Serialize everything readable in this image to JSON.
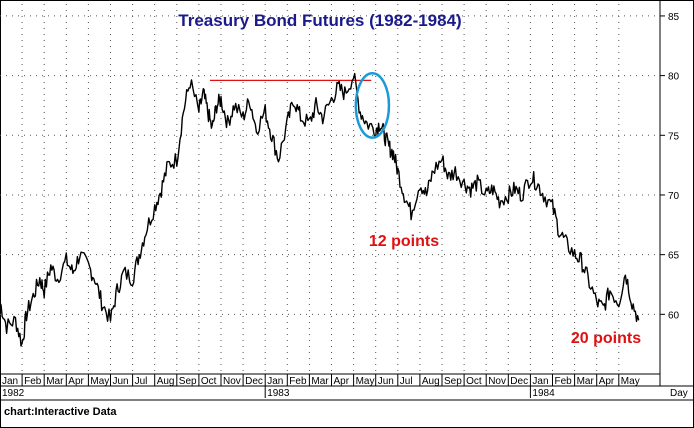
{
  "chart_data": {
    "type": "line",
    "title": "Treasury Bond Futures (1982-1984)",
    "xlabel": "Day",
    "ylabel": "",
    "ylim": [
      55,
      86
    ],
    "yticks": [
      60,
      65,
      70,
      75,
      80,
      85
    ],
    "month_labels": [
      "Jan",
      "Feb",
      "Mar",
      "Apr",
      "May",
      "Jun",
      "Jul",
      "Aug",
      "Sep",
      "Oct",
      "Nov",
      "Dec",
      "Jan",
      "Feb",
      "Mar",
      "Apr",
      "May",
      "Jun",
      "Jul",
      "Aug",
      "Sep",
      "Oct",
      "Nov",
      "Dec",
      "Jan",
      "Feb",
      "Mar",
      "Apr",
      "May"
    ],
    "year_labels": [
      {
        "label": "1982",
        "month_index": 0
      },
      {
        "label": "1983",
        "month_index": 12
      },
      {
        "label": "1984",
        "month_index": 24
      }
    ],
    "grid": true,
    "series": [
      {
        "color": "#000000",
        "x": [
          0.0,
          0.3,
          0.7,
          1.0,
          1.2,
          1.5,
          1.8,
          2.0,
          2.3,
          2.6,
          3.0,
          3.3,
          3.6,
          4.0,
          4.3,
          4.6,
          5.0,
          5.3,
          5.6,
          6.0,
          6.3,
          6.6,
          7.0,
          7.3,
          7.6,
          8.0,
          8.3,
          8.6,
          9.0,
          9.2,
          9.4,
          9.6,
          9.8,
          10.0,
          10.3,
          10.6,
          11.0,
          11.3,
          11.6,
          12.0,
          12.3,
          12.6,
          13.0,
          13.3,
          13.6,
          14.0,
          14.3,
          14.6,
          15.0,
          15.3,
          15.6,
          16.0,
          16.3,
          16.6,
          17.0,
          17.2,
          17.4,
          17.6,
          17.8,
          18.0,
          18.3,
          18.6,
          19.0,
          19.3,
          19.6,
          20.0,
          20.3,
          20.6,
          21.0,
          21.3,
          21.6,
          22.0,
          22.3,
          22.6,
          23.0,
          23.3,
          23.6,
          24.0,
          24.3,
          24.6,
          25.0,
          25.3,
          25.6,
          26.0,
          26.3,
          26.6,
          27.0,
          27.3,
          27.6,
          28.0,
          28.3,
          28.6,
          28.9
        ],
        "y": [
          61.0,
          59.0,
          59.5,
          57.5,
          60.0,
          61.5,
          63.0,
          62.0,
          64.0,
          63.0,
          64.5,
          63.5,
          65.0,
          64.0,
          63.0,
          61.0,
          59.5,
          62.0,
          63.5,
          63.0,
          65.0,
          67.0,
          69.0,
          70.5,
          72.5,
          73.0,
          77.0,
          79.5,
          77.0,
          78.5,
          77.0,
          75.5,
          77.5,
          78.0,
          76.0,
          77.5,
          76.5,
          78.0,
          75.5,
          77.0,
          75.0,
          73.0,
          76.0,
          78.0,
          76.5,
          76.0,
          77.5,
          76.5,
          78.0,
          79.0,
          78.5,
          80.0,
          77.0,
          76.0,
          75.5,
          76.0,
          75.0,
          74.0,
          73.5,
          72.0,
          70.0,
          68.5,
          71.0,
          70.0,
          72.0,
          73.0,
          71.5,
          72.0,
          71.0,
          70.5,
          71.0,
          70.0,
          70.5,
          69.5,
          70.0,
          70.5,
          70.0,
          71.5,
          71.0,
          70.0,
          69.0,
          67.0,
          66.0,
          65.0,
          64.5,
          63.0,
          61.0,
          60.5,
          62.0,
          61.0,
          63.5,
          61.0,
          59.5
        ]
      }
    ],
    "annotations": [
      {
        "text": "12 points",
        "color": "#e01010"
      },
      {
        "text": "20 points",
        "color": "#e01010"
      }
    ],
    "reference_line": {
      "y": 79.6,
      "x_from": 9.5,
      "x_to": 16.8,
      "color": "#e01010"
    },
    "highlight_ellipse": {
      "x_center": 16.85,
      "y_center": 77.5,
      "x_radius": 0.75,
      "y_radius": 2.7,
      "color": "#1a9ad6"
    },
    "source_label": "chart:Interactive Data"
  }
}
